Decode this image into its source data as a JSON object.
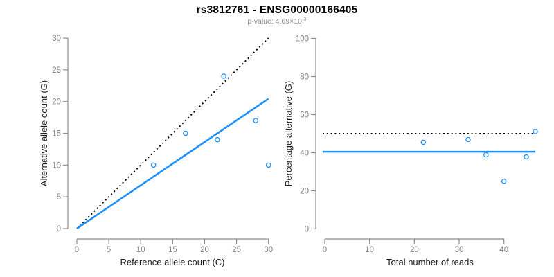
{
  "header": {
    "title": "rs3812761 - ENSG00000166405",
    "subtitle_prefix": "p-value: 4.69×10",
    "subtitle_exponent": "-3"
  },
  "colors": {
    "accent_blue": "#1E90FF",
    "line_black": "#000000",
    "axis_gray": "#8c8c8c",
    "tick_label_gray": "#7f7f7f",
    "axis_title_color": "#1a1a1a",
    "subtitle_gray": "#8a8a8a",
    "background": "#ffffff"
  },
  "chart_data": [
    {
      "type": "scatter",
      "name": "ref-vs-alt-scatter",
      "xlabel": "Reference allele count (C)",
      "ylabel": "Alternative allele count (G)",
      "xlim": [
        0,
        30
      ],
      "ylim": [
        0,
        30
      ],
      "xticks": [
        0,
        5,
        10,
        15,
        20,
        25,
        30
      ],
      "yticks": [
        0,
        5,
        10,
        15,
        20,
        25,
        30
      ],
      "grid": false,
      "legend": "none",
      "points": [
        [
          12,
          10
        ],
        [
          17,
          15
        ],
        [
          22,
          14
        ],
        [
          23,
          24
        ],
        [
          28,
          17
        ],
        [
          30,
          10
        ]
      ],
      "lines": [
        {
          "name": "identity-line",
          "style": "dotted",
          "color": "#000000",
          "from": [
            0,
            0
          ],
          "to": [
            30,
            30
          ]
        },
        {
          "name": "fit-line",
          "style": "solid",
          "color": "#1E90FF",
          "from": [
            0,
            0
          ],
          "to": [
            30,
            20.45
          ]
        }
      ]
    },
    {
      "type": "scatter",
      "name": "percentage-vs-total-scatter",
      "xlabel": "Total number of reads",
      "ylabel": "Percentage alternative (G)",
      "xlim": [
        0,
        47.5
      ],
      "ylim": [
        0,
        100
      ],
      "xticks": [
        0,
        10,
        20,
        30,
        40
      ],
      "yticks": [
        0,
        20,
        40,
        60,
        80,
        100
      ],
      "grid": false,
      "legend": "none",
      "points": [
        [
          22,
          45.5
        ],
        [
          32,
          46.9
        ],
        [
          36,
          38.9
        ],
        [
          40,
          25.0
        ],
        [
          45,
          37.8
        ],
        [
          47,
          51.1
        ]
      ],
      "lines": [
        {
          "name": "expected-50pct-line",
          "style": "dotted",
          "color": "#000000",
          "y": 50
        },
        {
          "name": "mean-alt-pct-line",
          "style": "solid",
          "color": "#1E90FF",
          "y": 40.5
        }
      ]
    }
  ]
}
